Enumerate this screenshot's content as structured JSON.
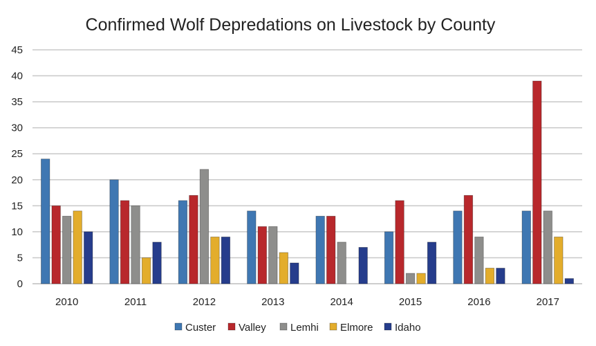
{
  "chart_data": {
    "type": "bar",
    "title": "Confirmed Wolf Depredations on Livestock by County",
    "xlabel": "",
    "ylabel": "",
    "categories": [
      "2010",
      "2011",
      "2012",
      "2013",
      "2014",
      "2015",
      "2016",
      "2017"
    ],
    "ylim": [
      0,
      45
    ],
    "yticks": [
      0,
      5,
      10,
      15,
      20,
      25,
      30,
      35,
      40,
      45
    ],
    "grid": true,
    "legend_position": "bottom",
    "series": [
      {
        "name": "Custer",
        "color": "#3f77b2",
        "values": [
          24,
          20,
          16,
          14,
          13,
          10,
          14,
          14
        ]
      },
      {
        "name": "Valley",
        "color": "#b8282c",
        "values": [
          15,
          16,
          17,
          11,
          13,
          16,
          17,
          39
        ]
      },
      {
        "name": "Lemhi",
        "color": "#8e8e8c",
        "values": [
          13,
          15,
          22,
          11,
          8,
          2,
          9,
          14
        ]
      },
      {
        "name": "Elmore",
        "color": "#e3ad2c",
        "values": [
          14,
          5,
          9,
          6,
          0,
          2,
          3,
          9
        ]
      },
      {
        "name": "Idaho",
        "color": "#263d8c",
        "values": [
          10,
          8,
          9,
          4,
          7,
          8,
          3,
          1
        ]
      }
    ]
  }
}
